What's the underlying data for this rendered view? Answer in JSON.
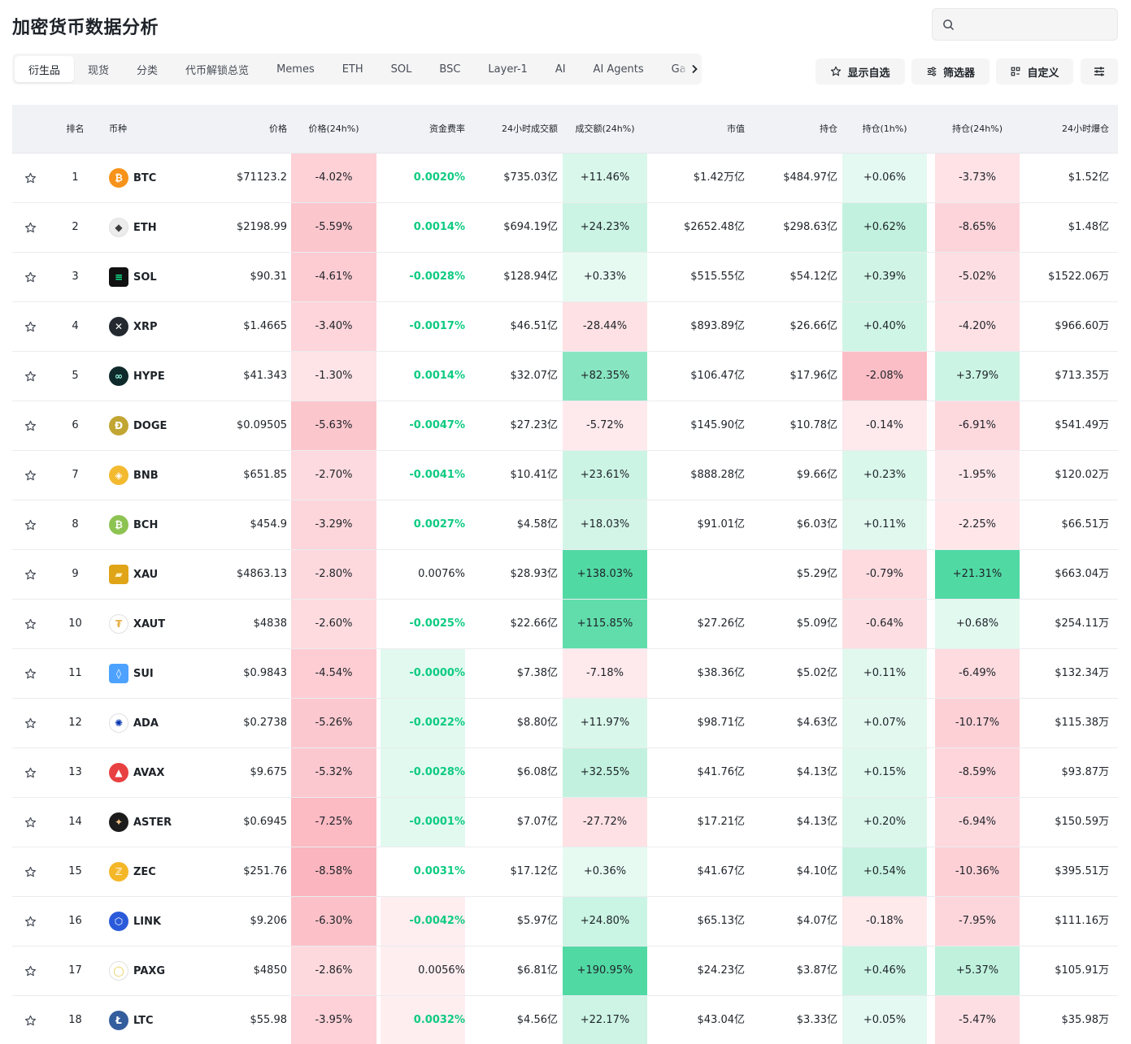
{
  "title": "加密货币数据分析",
  "search": {
    "placeholder": ""
  },
  "tabs": [
    "衍生品",
    "现货",
    "分类",
    "代币解锁总览",
    "Memes",
    "ETH",
    "SOL",
    "BSC",
    "Layer-1",
    "AI",
    "AI Agents",
    "Ga"
  ],
  "active_tab": 0,
  "toolbar": {
    "watchlist_label": "显示自选",
    "filter_label": "筛选器",
    "customize_label": "自定义"
  },
  "columns": [
    "排名",
    "币种",
    "价格",
    "价格(24h%)",
    "资金费率",
    "24小时成交额",
    "成交额(24h%)",
    "市值",
    "持仓",
    "持仓(1h%)",
    "持仓(24h%)",
    "24小时爆仓"
  ],
  "colors": {
    "positive": "#0ecb81",
    "negative": "#f6465d",
    "header_bg": "#f0f2f5",
    "chip_bg": "#f5f5f5"
  },
  "rows": [
    {
      "rank": "1",
      "symbol": "BTC",
      "price": "$71123.2",
      "change": "-4.02%",
      "funding": "0.0020%",
      "volume": "$735.03亿",
      "vol_change": "+11.46%",
      "mcap": "$1.42万亿",
      "oi": "$484.97亿",
      "oi1h": "+0.06%",
      "oi24h": "-3.73%",
      "liq": "$1.52亿",
      "icon": "btc-icon",
      "color": "#f7931a"
    },
    {
      "rank": "2",
      "symbol": "ETH",
      "price": "$2198.99",
      "change": "-5.59%",
      "funding": "0.0014%",
      "volume": "$694.19亿",
      "vol_change": "+24.23%",
      "mcap": "$2652.48亿",
      "oi": "$298.63亿",
      "oi1h": "+0.62%",
      "oi24h": "-8.65%",
      "liq": "$1.48亿",
      "icon": "eth-icon",
      "color": "#ececec"
    },
    {
      "rank": "3",
      "symbol": "SOL",
      "price": "$90.31",
      "change": "-4.61%",
      "funding": "-0.0028%",
      "volume": "$128.94亿",
      "vol_change": "+0.33%",
      "mcap": "$515.55亿",
      "oi": "$54.12亿",
      "oi1h": "+0.39%",
      "oi24h": "-5.02%",
      "liq": "$1522.06万",
      "icon": "sol-icon",
      "color": "#111111"
    },
    {
      "rank": "4",
      "symbol": "XRP",
      "price": "$1.4665",
      "change": "-3.40%",
      "funding": "-0.0017%",
      "volume": "$46.51亿",
      "vol_change": "-28.44%",
      "mcap": "$893.89亿",
      "oi": "$26.66亿",
      "oi1h": "+0.40%",
      "oi24h": "-4.20%",
      "liq": "$966.60万",
      "icon": "xrp-icon",
      "color": "#23292f"
    },
    {
      "rank": "5",
      "symbol": "HYPE",
      "price": "$41.343",
      "change": "-1.30%",
      "funding": "0.0014%",
      "volume": "$32.07亿",
      "vol_change": "+82.35%",
      "mcap": "$106.47亿",
      "oi": "$17.96亿",
      "oi1h": "-2.08%",
      "oi24h": "+3.79%",
      "liq": "$713.35万",
      "icon": "hype-icon",
      "color": "#0f2a2a"
    },
    {
      "rank": "6",
      "symbol": "DOGE",
      "price": "$0.09505",
      "change": "-5.63%",
      "funding": "-0.0047%",
      "volume": "$27.23亿",
      "vol_change": "-5.72%",
      "mcap": "$145.90亿",
      "oi": "$10.78亿",
      "oi1h": "-0.14%",
      "oi24h": "-6.91%",
      "liq": "$541.49万",
      "icon": "doge-icon",
      "color": "#c2a633"
    },
    {
      "rank": "7",
      "symbol": "BNB",
      "price": "$651.85",
      "change": "-2.70%",
      "funding": "-0.0041%",
      "volume": "$10.41亿",
      "vol_change": "+23.61%",
      "mcap": "$888.28亿",
      "oi": "$9.66亿",
      "oi1h": "+0.23%",
      "oi24h": "-1.95%",
      "liq": "$120.02万",
      "icon": "bnb-icon",
      "color": "#f3ba2f"
    },
    {
      "rank": "8",
      "symbol": "BCH",
      "price": "$454.9",
      "change": "-3.29%",
      "funding": "0.0027%",
      "volume": "$4.58亿",
      "vol_change": "+18.03%",
      "mcap": "$91.01亿",
      "oi": "$6.03亿",
      "oi1h": "+0.11%",
      "oi24h": "-2.25%",
      "liq": "$66.51万",
      "icon": "bch-icon",
      "color": "#8dc351"
    },
    {
      "rank": "9",
      "symbol": "XAU",
      "price": "$4863.13",
      "change": "-2.80%",
      "funding": "0.0076%",
      "volume": "$28.93亿",
      "vol_change": "+138.03%",
      "mcap": "",
      "oi": "$5.29亿",
      "oi1h": "-0.79%",
      "oi24h": "+21.31%",
      "liq": "$663.04万",
      "icon": "gold-bar-icon",
      "color": "#e0a418"
    },
    {
      "rank": "10",
      "symbol": "XAUT",
      "price": "$4838",
      "change": "-2.60%",
      "funding": "-0.0025%",
      "volume": "$22.66亿",
      "vol_change": "+115.85%",
      "mcap": "$27.26亿",
      "oi": "$5.09亿",
      "oi1h": "-0.64%",
      "oi24h": "+0.68%",
      "liq": "$254.11万",
      "icon": "xaut-icon",
      "color": "#e8b04a"
    },
    {
      "rank": "11",
      "symbol": "SUI",
      "price": "$0.9843",
      "change": "-4.54%",
      "funding": "-0.0000%",
      "volume": "$7.38亿",
      "vol_change": "-7.18%",
      "mcap": "$38.36亿",
      "oi": "$5.02亿",
      "oi1h": "+0.11%",
      "oi24h": "-6.49%",
      "liq": "$132.34万",
      "icon": "sui-icon",
      "color": "#4da2ff"
    },
    {
      "rank": "12",
      "symbol": "ADA",
      "price": "$0.2738",
      "change": "-5.26%",
      "funding": "-0.0022%",
      "volume": "$8.80亿",
      "vol_change": "+11.97%",
      "mcap": "$98.71亿",
      "oi": "$4.63亿",
      "oi1h": "+0.07%",
      "oi24h": "-10.17%",
      "liq": "$115.38万",
      "icon": "ada-icon",
      "color": "#ffffff"
    },
    {
      "rank": "13",
      "symbol": "AVAX",
      "price": "$9.675",
      "change": "-5.32%",
      "funding": "-0.0028%",
      "volume": "$6.08亿",
      "vol_change": "+32.55%",
      "mcap": "$41.76亿",
      "oi": "$4.13亿",
      "oi1h": "+0.15%",
      "oi24h": "-8.59%",
      "liq": "$93.87万",
      "icon": "avax-icon",
      "color": "#e84142"
    },
    {
      "rank": "14",
      "symbol": "ASTER",
      "price": "$0.6945",
      "change": "-7.25%",
      "funding": "-0.0001%",
      "volume": "$7.07亿",
      "vol_change": "-27.72%",
      "mcap": "$17.21亿",
      "oi": "$4.13亿",
      "oi1h": "+0.20%",
      "oi24h": "-6.94%",
      "liq": "$150.59万",
      "icon": "aster-icon",
      "color": "#1c1c1c"
    },
    {
      "rank": "15",
      "symbol": "ZEC",
      "price": "$251.76",
      "change": "-8.58%",
      "funding": "0.0031%",
      "volume": "$17.12亿",
      "vol_change": "+0.36%",
      "mcap": "$41.67亿",
      "oi": "$4.10亿",
      "oi1h": "+0.54%",
      "oi24h": "-10.36%",
      "liq": "$395.51万",
      "icon": "zec-icon",
      "color": "#f4b728"
    },
    {
      "rank": "16",
      "symbol": "LINK",
      "price": "$9.206",
      "change": "-6.30%",
      "funding": "-0.0042%",
      "volume": "$5.97亿",
      "vol_change": "+24.80%",
      "mcap": "$65.13亿",
      "oi": "$4.07亿",
      "oi1h": "-0.18%",
      "oi24h": "-7.95%",
      "liq": "$111.16万",
      "icon": "link-icon",
      "color": "#2a5ada"
    },
    {
      "rank": "17",
      "symbol": "PAXG",
      "price": "$4850",
      "change": "-2.86%",
      "funding": "0.0056%",
      "volume": "$6.81亿",
      "vol_change": "+190.95%",
      "mcap": "$24.23亿",
      "oi": "$3.87亿",
      "oi1h": "+0.46%",
      "oi24h": "+5.37%",
      "liq": "$105.91万",
      "icon": "paxg-icon",
      "color": "#e4ce4e"
    },
    {
      "rank": "18",
      "symbol": "LTC",
      "price": "$55.98",
      "change": "-3.95%",
      "funding": "0.0032%",
      "volume": "$4.56亿",
      "vol_change": "+22.17%",
      "mcap": "$43.04亿",
      "oi": "$3.33亿",
      "oi1h": "+0.05%",
      "oi24h": "-5.47%",
      "liq": "$35.98万",
      "icon": "ltc-icon",
      "color": "#345d9d"
    }
  ]
}
